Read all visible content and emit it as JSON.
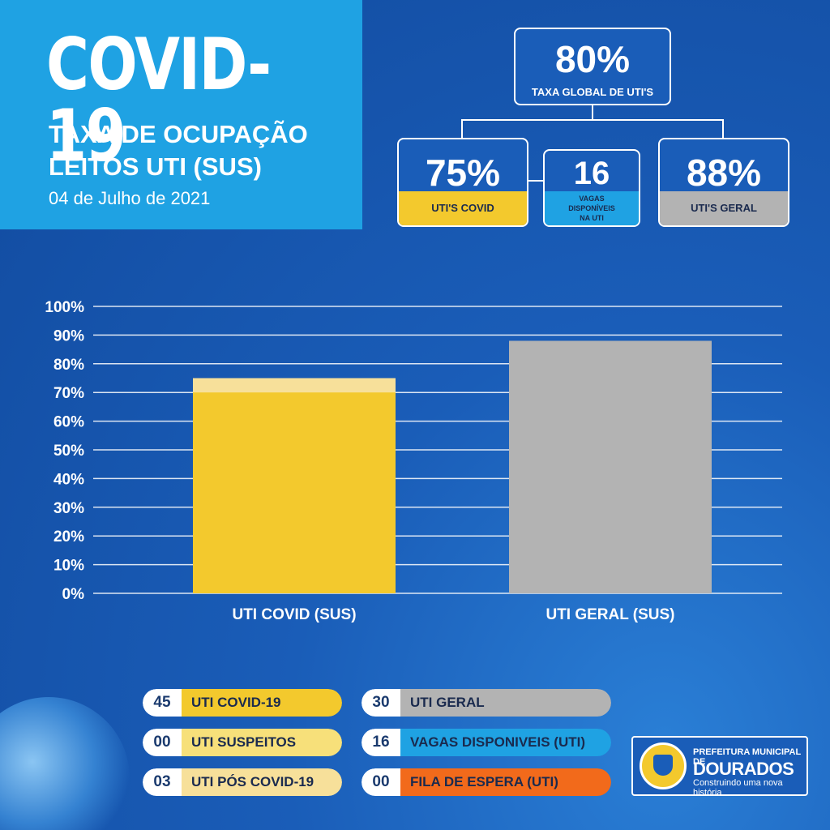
{
  "header": {
    "title": "COVID-19",
    "subtitle_line1": "TAXA DE OCUPAÇÃO",
    "subtitle_line2": "LEITOS UTI (SUS)",
    "date": "04 de Julho de 2021"
  },
  "summary": {
    "global": {
      "value": "80%",
      "label": "TAXA GLOBAL DE UTI'S"
    },
    "covid": {
      "value": "75%",
      "label": "UTI'S COVID"
    },
    "vagas": {
      "value": "16",
      "label_line1": "VAGAS",
      "label_line2": "DISPONÍVEIS",
      "label_line3": "NA UTI"
    },
    "geral": {
      "value": "88%",
      "label": "UTI'S GERAL"
    }
  },
  "colors": {
    "background": "#1a5db8",
    "title_panel": "#1fa2e3",
    "covid": "#f3c92d",
    "covid_light": "#f7e09a",
    "geral": "#b3b3b3",
    "vagas": "#1fa2e3",
    "fila": "#f26a1b",
    "suspeitos": "#f7e07a"
  },
  "chart_data": {
    "type": "bar",
    "categories": [
      "UTI COVID (SUS)",
      "UTI GERAL (SUS)"
    ],
    "values": [
      75,
      88
    ],
    "y_ticks": [
      "0%",
      "10%",
      "20%",
      "30%",
      "40%",
      "50%",
      "60%",
      "70%",
      "80%",
      "90%",
      "100%"
    ],
    "ylim": [
      0,
      100
    ],
    "grid": true
  },
  "legend": [
    {
      "num": "45",
      "label": "UTI COVID-19"
    },
    {
      "num": "00",
      "label": "UTI SUSPEITOS"
    },
    {
      "num": "03",
      "label": "UTI PÓS COVID-19"
    },
    {
      "num": "30",
      "label": "UTI GERAL"
    },
    {
      "num": "16",
      "label": "VAGAS DISPONIVEIS (UTI)"
    },
    {
      "num": "00",
      "label": "FILA DE ESPERA (UTI)"
    }
  ],
  "logo": {
    "line1": "PREFEITURA MUNICIPAL DE",
    "line2": "DOURADOS",
    "tagline": "Construindo uma nova história"
  }
}
